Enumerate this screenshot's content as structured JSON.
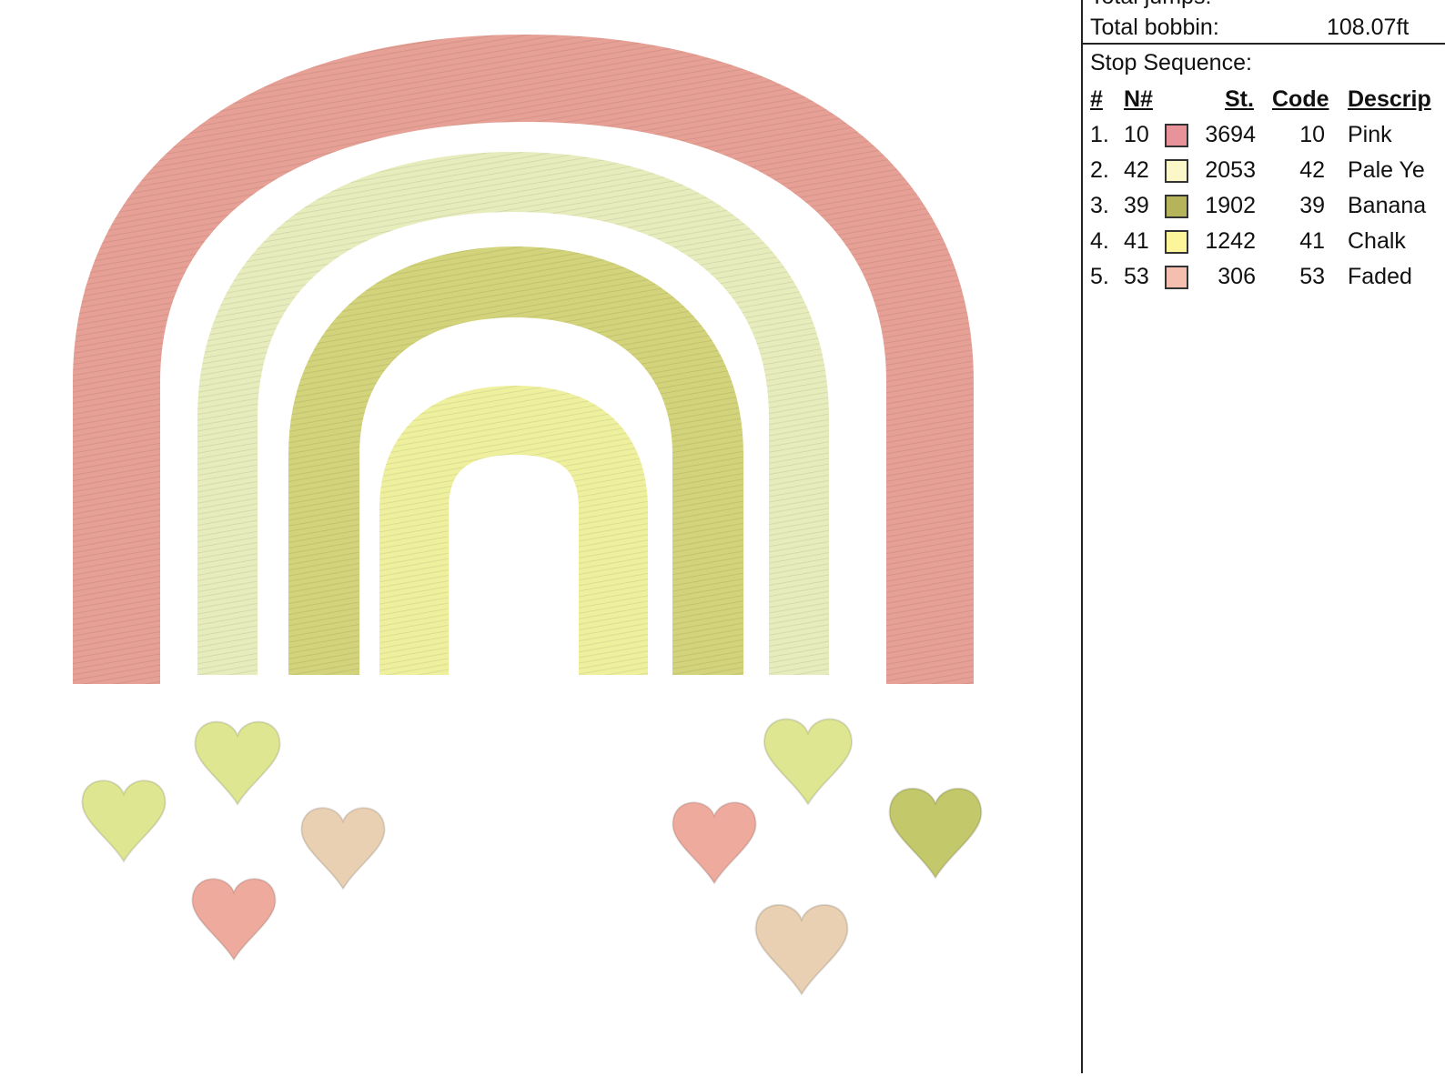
{
  "header_clipped": "Total jumps:",
  "total_bobbin": {
    "label": "Total bobbin:",
    "value": "108.07ft"
  },
  "stop_sequence": {
    "title": "Stop Sequence:",
    "columns": [
      "#",
      "N#",
      "St.",
      "Code",
      "Descrip"
    ],
    "rows": [
      {
        "num": "1.",
        "n": "10",
        "color": "#e8939a",
        "stitches": "3694",
        "code": "10",
        "desc": "Pink"
      },
      {
        "num": "2.",
        "n": "42",
        "color": "#fbf7c8",
        "stitches": "2053",
        "code": "42",
        "desc": "Pale Ye"
      },
      {
        "num": "3.",
        "n": "39",
        "color": "#b5b45a",
        "stitches": "1902",
        "code": "39",
        "desc": "Banana"
      },
      {
        "num": "4.",
        "n": "41",
        "color": "#fdf59a",
        "stitches": "1242",
        "code": "41",
        "desc": "Chalk"
      },
      {
        "num": "5.",
        "n": "53",
        "color": "#f4bfae",
        "stitches": "306",
        "code": "53",
        "desc": "Faded"
      }
    ]
  },
  "thread_colors": {
    "outer_arc": "#e6a095",
    "second_arc": "#e7ecbc",
    "third_arc": "#d2d37a",
    "inner_arc": "#eef09e",
    "heart_green": "#dfe691",
    "heart_olive": "#c3c86a",
    "heart_pink": "#eeaa9c",
    "heart_beige": "#ead0b2"
  }
}
